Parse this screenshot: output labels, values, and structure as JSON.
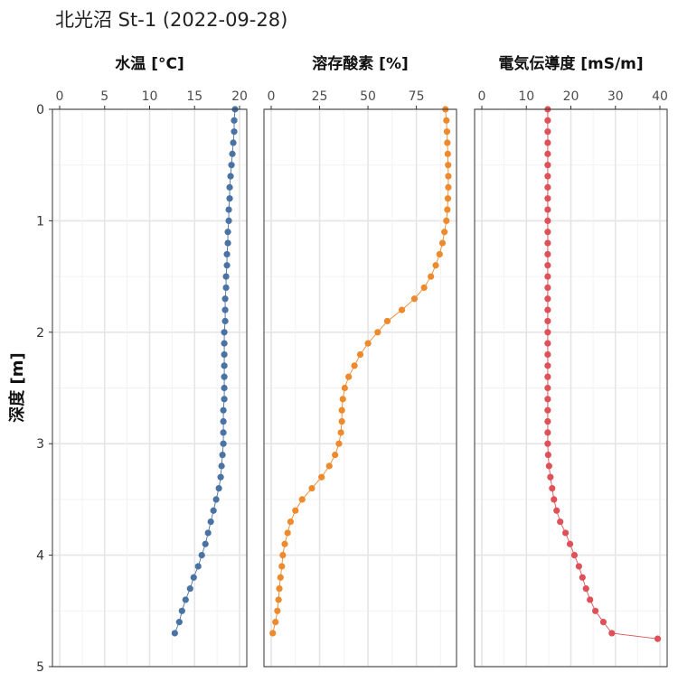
{
  "title": "北光沼 St-1 (2022-09-28)",
  "chart_data": {
    "type": "scatter",
    "title": "北光沼 St-1 (2022-09-28)",
    "ylabel": "深度 [m]",
    "ylim": [
      0,
      5
    ],
    "y_reversed": true,
    "y_ticks": [
      "0",
      "1",
      "2",
      "3",
      "4",
      "5"
    ],
    "x_axis_position": "top",
    "grid": true,
    "panels": [
      {
        "title": "水温 [°C]",
        "xlim": [
          0,
          20
        ],
        "x_ticks": [
          "0",
          "5",
          "10",
          "15",
          "20"
        ],
        "color": "#4A72A3",
        "points": [
          [
            19.5,
            0.0
          ],
          [
            19.4,
            0.1
          ],
          [
            19.4,
            0.2
          ],
          [
            19.3,
            0.3
          ],
          [
            19.2,
            0.4
          ],
          [
            19.1,
            0.5
          ],
          [
            19.0,
            0.6
          ],
          [
            18.9,
            0.7
          ],
          [
            18.9,
            0.8
          ],
          [
            18.8,
            0.9
          ],
          [
            18.8,
            1.0
          ],
          [
            18.7,
            1.1
          ],
          [
            18.7,
            1.2
          ],
          [
            18.6,
            1.3
          ],
          [
            18.6,
            1.4
          ],
          [
            18.5,
            1.5
          ],
          [
            18.5,
            1.6
          ],
          [
            18.4,
            1.7
          ],
          [
            18.4,
            1.8
          ],
          [
            18.4,
            1.9
          ],
          [
            18.3,
            2.0
          ],
          [
            18.3,
            2.1
          ],
          [
            18.3,
            2.2
          ],
          [
            18.3,
            2.3
          ],
          [
            18.3,
            2.4
          ],
          [
            18.3,
            2.5
          ],
          [
            18.3,
            2.6
          ],
          [
            18.2,
            2.7
          ],
          [
            18.2,
            2.8
          ],
          [
            18.2,
            2.9
          ],
          [
            18.2,
            3.0
          ],
          [
            18.1,
            3.1
          ],
          [
            18.0,
            3.2
          ],
          [
            17.9,
            3.3
          ],
          [
            17.7,
            3.4
          ],
          [
            17.4,
            3.5
          ],
          [
            17.1,
            3.6
          ],
          [
            16.8,
            3.7
          ],
          [
            16.5,
            3.8
          ],
          [
            16.2,
            3.9
          ],
          [
            15.8,
            4.0
          ],
          [
            15.4,
            4.1
          ],
          [
            14.9,
            4.2
          ],
          [
            14.5,
            4.3
          ],
          [
            14.0,
            4.4
          ],
          [
            13.6,
            4.5
          ],
          [
            13.3,
            4.6
          ],
          [
            12.8,
            4.7
          ]
        ]
      },
      {
        "title": "溶存酸素 [%]",
        "xlim": [
          0,
          92
        ],
        "x_ticks": [
          "0",
          "25",
          "50",
          "75"
        ],
        "color": "#EE8A2E",
        "points": [
          [
            90.0,
            0.0
          ],
          [
            90.5,
            0.1
          ],
          [
            90.8,
            0.2
          ],
          [
            91.0,
            0.3
          ],
          [
            91.2,
            0.4
          ],
          [
            91.4,
            0.5
          ],
          [
            91.5,
            0.6
          ],
          [
            91.5,
            0.7
          ],
          [
            91.3,
            0.8
          ],
          [
            91.0,
            0.9
          ],
          [
            90.5,
            1.0
          ],
          [
            89.5,
            1.1
          ],
          [
            88.5,
            1.2
          ],
          [
            87.0,
            1.3
          ],
          [
            85.0,
            1.4
          ],
          [
            82.5,
            1.5
          ],
          [
            79.0,
            1.6
          ],
          [
            74.0,
            1.7
          ],
          [
            67.5,
            1.8
          ],
          [
            60.0,
            1.9
          ],
          [
            55.0,
            2.0
          ],
          [
            50.0,
            2.1
          ],
          [
            46.0,
            2.2
          ],
          [
            43.0,
            2.3
          ],
          [
            40.0,
            2.4
          ],
          [
            38.0,
            2.5
          ],
          [
            37.0,
            2.6
          ],
          [
            36.5,
            2.7
          ],
          [
            36.5,
            2.8
          ],
          [
            36.0,
            2.9
          ],
          [
            35.0,
            3.0
          ],
          [
            33.0,
            3.1
          ],
          [
            30.0,
            3.2
          ],
          [
            26.0,
            3.3
          ],
          [
            21.0,
            3.4
          ],
          [
            16.0,
            3.5
          ],
          [
            12.5,
            3.6
          ],
          [
            10.0,
            3.7
          ],
          [
            8.5,
            3.8
          ],
          [
            7.0,
            3.9
          ],
          [
            6.0,
            4.0
          ],
          [
            5.5,
            4.1
          ],
          [
            4.8,
            4.2
          ],
          [
            4.2,
            4.3
          ],
          [
            3.8,
            4.4
          ],
          [
            3.2,
            4.5
          ],
          [
            2.2,
            4.6
          ],
          [
            0.8,
            4.7
          ]
        ]
      },
      {
        "title": "電気伝導度 [mS/m]",
        "xlim": [
          0,
          40
        ],
        "x_ticks": [
          "0",
          "10",
          "20",
          "30",
          "40"
        ],
        "color": "#DE5158",
        "points": [
          [
            14.8,
            0.0
          ],
          [
            14.8,
            0.1
          ],
          [
            14.8,
            0.2
          ],
          [
            14.8,
            0.3
          ],
          [
            14.8,
            0.4
          ],
          [
            14.8,
            0.5
          ],
          [
            14.8,
            0.6
          ],
          [
            14.8,
            0.7
          ],
          [
            14.8,
            0.8
          ],
          [
            14.8,
            0.9
          ],
          [
            14.8,
            1.0
          ],
          [
            14.8,
            1.1
          ],
          [
            14.8,
            1.2
          ],
          [
            14.8,
            1.3
          ],
          [
            14.8,
            1.4
          ],
          [
            14.8,
            1.5
          ],
          [
            14.8,
            1.6
          ],
          [
            14.8,
            1.7
          ],
          [
            14.8,
            1.8
          ],
          [
            14.8,
            1.9
          ],
          [
            14.8,
            2.0
          ],
          [
            14.8,
            2.1
          ],
          [
            14.8,
            2.2
          ],
          [
            14.8,
            2.3
          ],
          [
            14.8,
            2.4
          ],
          [
            14.8,
            2.5
          ],
          [
            14.8,
            2.6
          ],
          [
            14.8,
            2.7
          ],
          [
            14.8,
            2.8
          ],
          [
            14.8,
            2.9
          ],
          [
            14.8,
            3.0
          ],
          [
            14.9,
            3.1
          ],
          [
            15.1,
            3.2
          ],
          [
            15.4,
            3.3
          ],
          [
            15.8,
            3.4
          ],
          [
            16.2,
            3.5
          ],
          [
            16.8,
            3.6
          ],
          [
            17.6,
            3.7
          ],
          [
            18.8,
            3.8
          ],
          [
            19.8,
            3.9
          ],
          [
            20.8,
            4.0
          ],
          [
            21.8,
            4.1
          ],
          [
            22.6,
            4.2
          ],
          [
            23.4,
            4.3
          ],
          [
            24.3,
            4.4
          ],
          [
            25.5,
            4.5
          ],
          [
            27.3,
            4.6
          ],
          [
            29.2,
            4.7
          ],
          [
            39.5,
            4.75
          ]
        ]
      }
    ]
  }
}
